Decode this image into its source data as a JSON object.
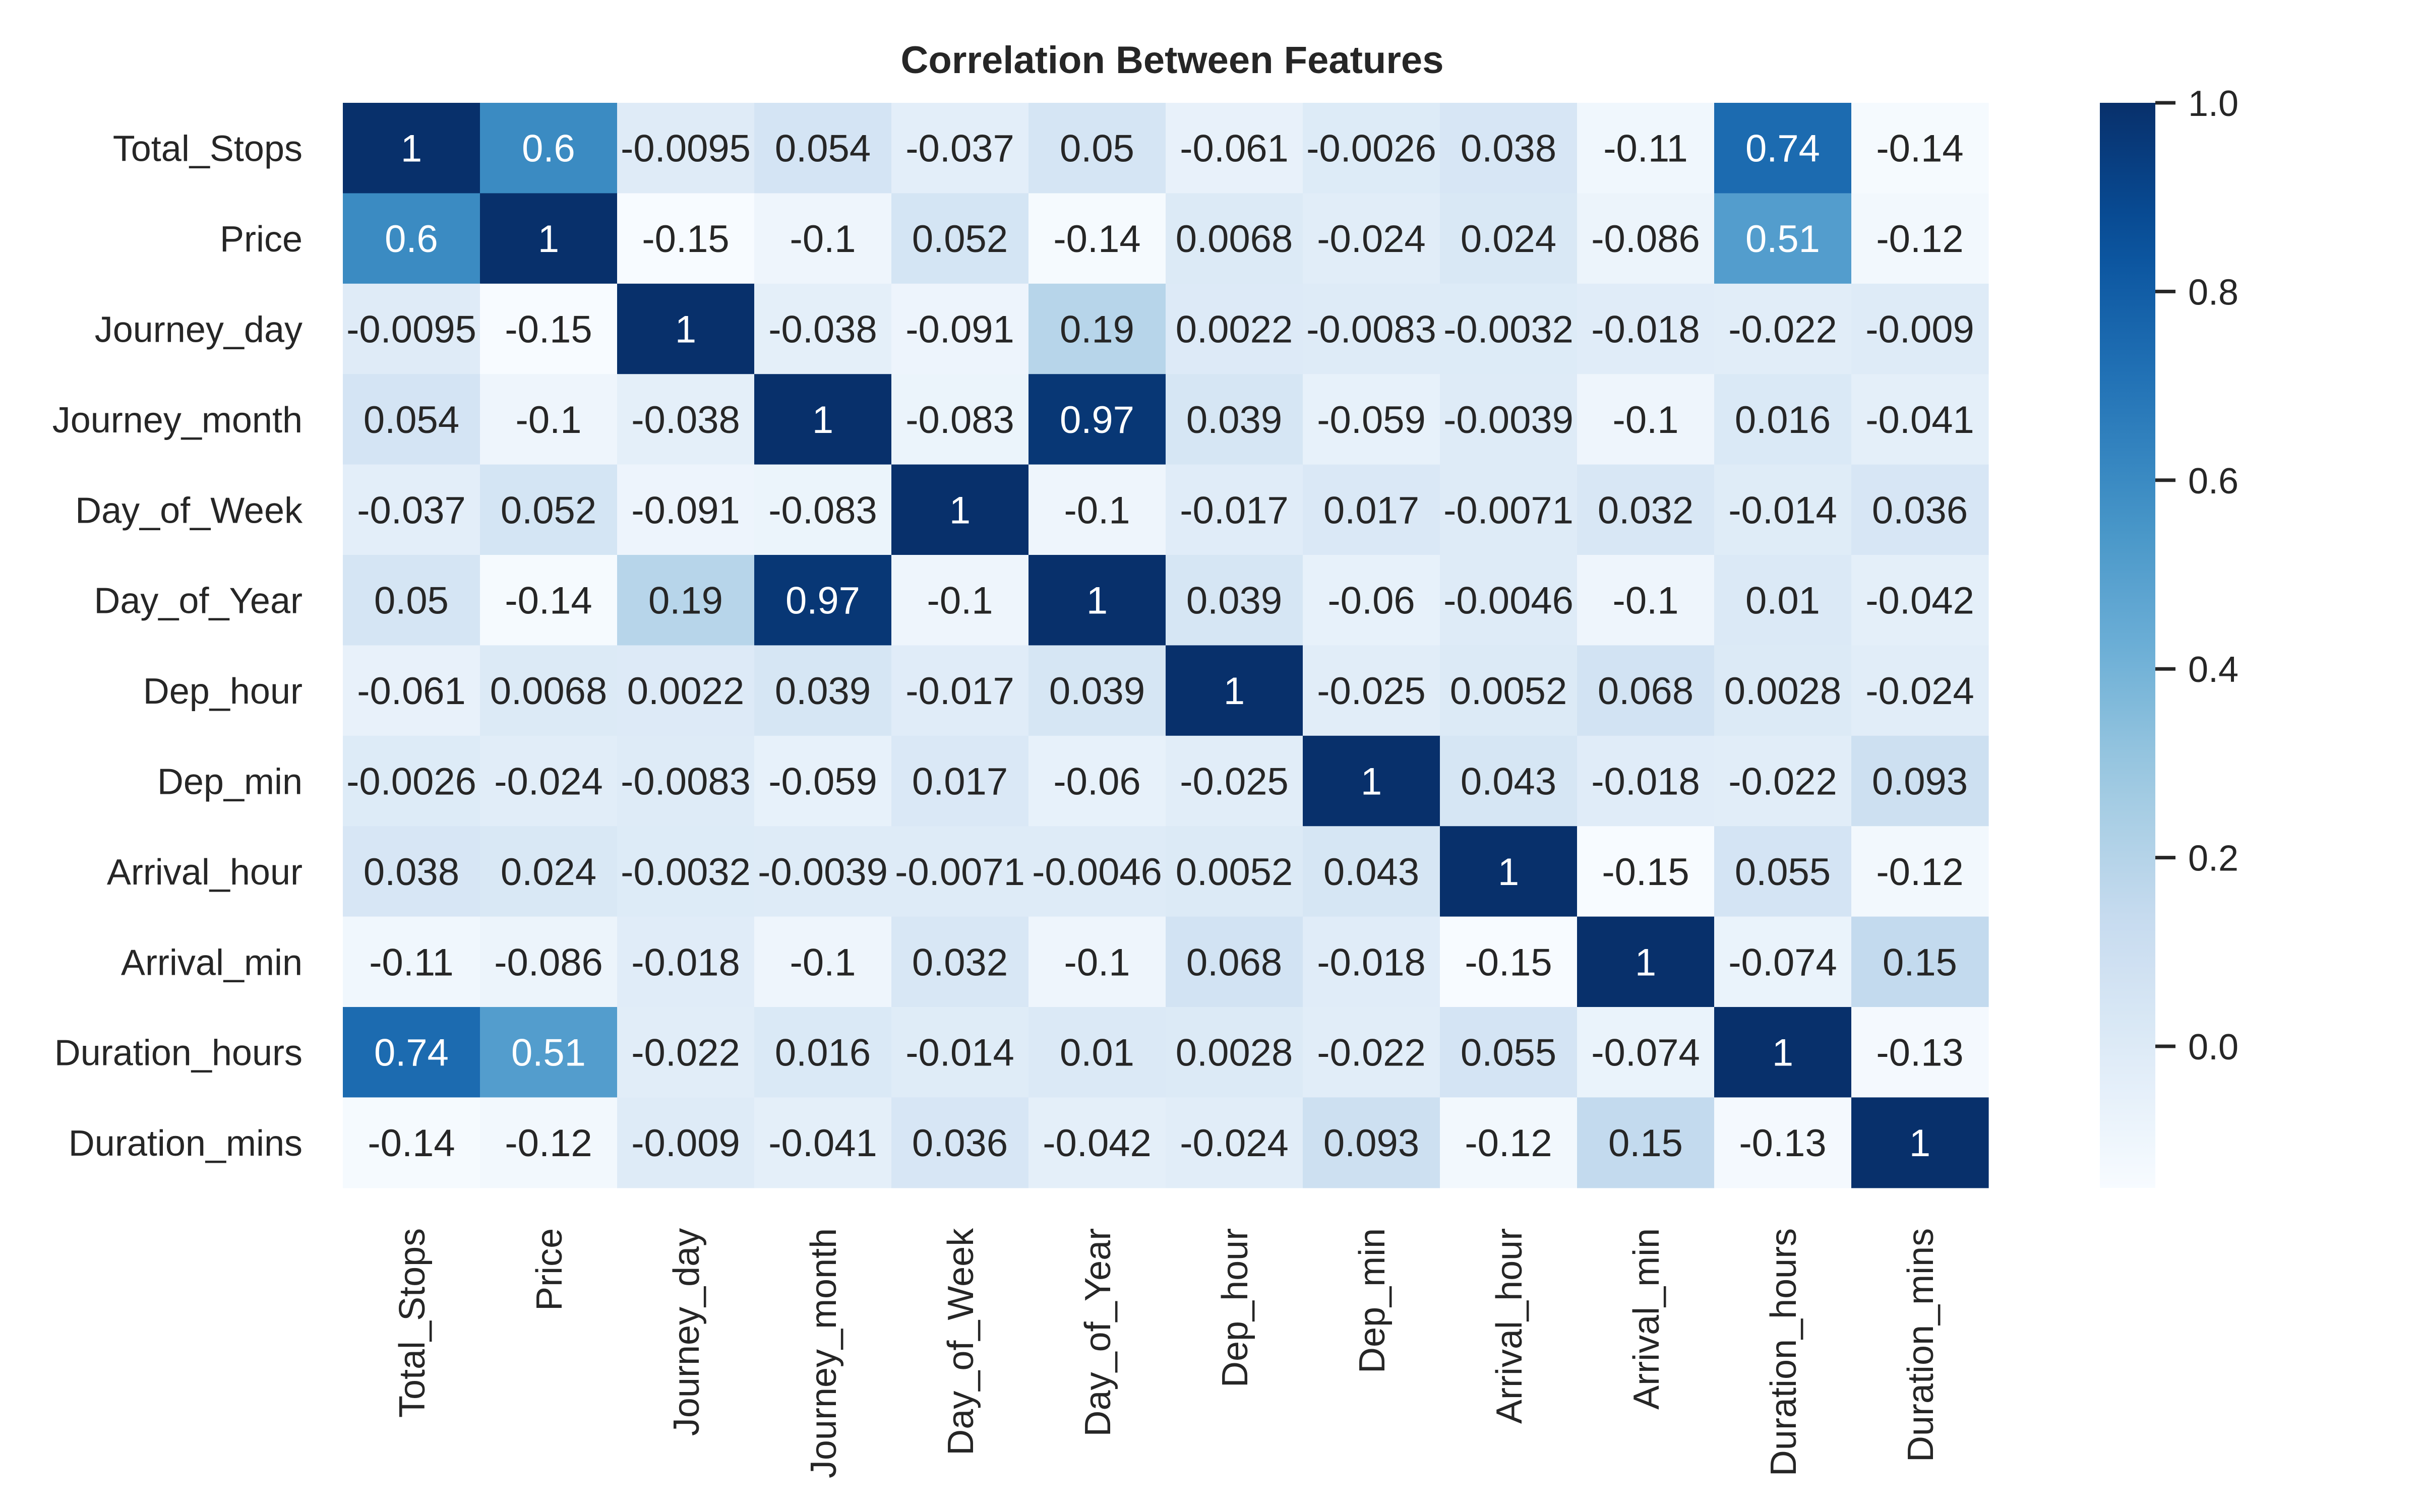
{
  "chart_data": {
    "type": "heatmap",
    "title": "Correlation Between Features",
    "row_labels": [
      "Total_Stops",
      "Price",
      "Journey_day",
      "Journey_month",
      "Day_of_Week",
      "Day_of_Year",
      "Dep_hour",
      "Dep_min",
      "Arrival_hour",
      "Arrival_min",
      "Duration_hours",
      "Duration_mins"
    ],
    "column_labels": [
      "Total_Stops",
      "Price",
      "Journey_day",
      "Journey_month",
      "Day_of_Week",
      "Day_of_Year",
      "Dep_hour",
      "Dep_min",
      "Arrival_hour",
      "Arrival_min",
      "Duration_hours",
      "Duration_mins"
    ],
    "values": [
      [
        1,
        0.6,
        -0.0095,
        0.054,
        -0.037,
        0.05,
        -0.061,
        -0.0026,
        0.038,
        -0.11,
        0.74,
        -0.14
      ],
      [
        0.6,
        1,
        -0.15,
        -0.1,
        0.052,
        -0.14,
        0.0068,
        -0.024,
        0.024,
        -0.086,
        0.51,
        -0.12
      ],
      [
        -0.0095,
        -0.15,
        1,
        -0.038,
        -0.091,
        0.19,
        0.0022,
        -0.0083,
        -0.0032,
        -0.018,
        -0.022,
        -0.009
      ],
      [
        0.054,
        -0.1,
        -0.038,
        1,
        -0.083,
        0.97,
        0.039,
        -0.059,
        -0.0039,
        -0.1,
        0.016,
        -0.041
      ],
      [
        -0.037,
        0.052,
        -0.091,
        -0.083,
        1,
        -0.1,
        -0.017,
        0.017,
        -0.0071,
        0.032,
        -0.014,
        0.036
      ],
      [
        0.05,
        -0.14,
        0.19,
        0.97,
        -0.1,
        1,
        0.039,
        -0.06,
        -0.0046,
        -0.1,
        0.01,
        -0.042
      ],
      [
        -0.061,
        0.0068,
        0.0022,
        0.039,
        -0.017,
        0.039,
        1,
        -0.025,
        0.0052,
        0.068,
        0.0028,
        -0.024
      ],
      [
        -0.0026,
        -0.024,
        -0.0083,
        -0.059,
        0.017,
        -0.06,
        -0.025,
        1,
        0.043,
        -0.018,
        -0.022,
        0.093
      ],
      [
        0.038,
        0.024,
        -0.0032,
        -0.0039,
        -0.0071,
        -0.0046,
        0.0052,
        0.043,
        1,
        -0.15,
        0.055,
        -0.12
      ],
      [
        -0.11,
        -0.086,
        -0.018,
        -0.1,
        0.032,
        -0.1,
        0.068,
        -0.018,
        -0.15,
        1,
        -0.074,
        0.15
      ],
      [
        0.74,
        0.51,
        -0.022,
        0.016,
        -0.014,
        0.01,
        0.0028,
        -0.022,
        0.055,
        -0.074,
        1,
        -0.13
      ],
      [
        -0.14,
        -0.12,
        -0.009,
        -0.041,
        0.036,
        -0.042,
        -0.024,
        0.093,
        -0.12,
        0.15,
        -0.13,
        1
      ]
    ],
    "annotations": true,
    "colormap": "Blues",
    "colorbar": {
      "min": -0.15,
      "max": 1.0,
      "ticks": [
        0.0,
        0.2,
        0.4,
        0.6,
        0.8,
        1.0
      ],
      "tick_labels": [
        "0.0",
        "0.2",
        "0.4",
        "0.6",
        "0.8",
        "1.0"
      ],
      "placement": "right"
    },
    "grid": false
  }
}
